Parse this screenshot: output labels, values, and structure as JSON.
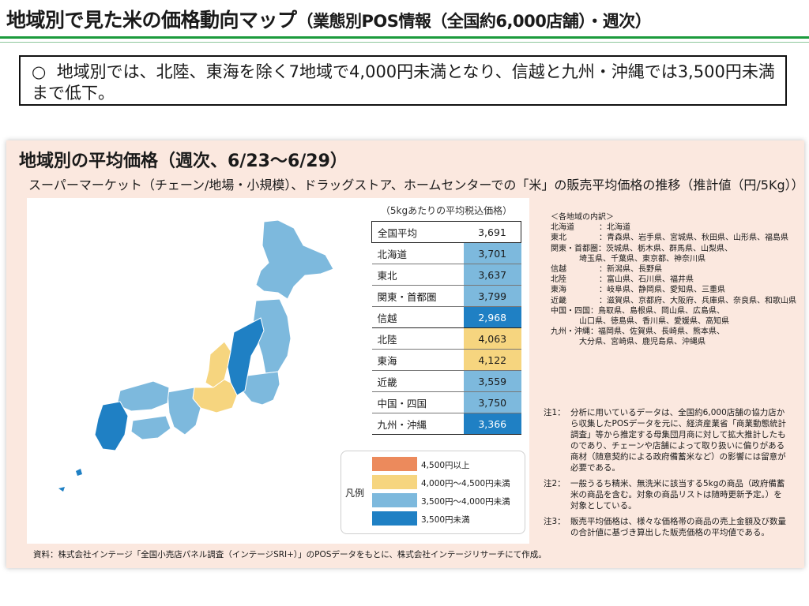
{
  "header": {
    "title": "地域別で見た米の価格動向マップ",
    "title_suffix": "（業態別POS情報（全国約6,000店舗）・週次）"
  },
  "summary": {
    "bullet": "○",
    "text": "地域別では、北陸、東海を除く7地域で4,000円未満となり、信越と九州・沖縄では3,500円未満まで低下。"
  },
  "panel": {
    "title": "地域別の平均価格（週次、6/23～6/29）",
    "subtitle": "スーパーマーケット（チェーン/地場・小規模）、ドラッグストア、ホームセンターでの「米」の販売平均価格の推移（推計値（円/5Kg））"
  },
  "colors": {
    "green_rule": "#1b9a3c",
    "panel_bg": "#fbe8df",
    "band_4500_plus": "#ec8a5c",
    "band_4000_4500": "#f6d57f",
    "band_3500_4000": "#7db9dd",
    "band_under_3500": "#1f80c4"
  },
  "table": {
    "caption": "（5kgあたりの平均税込価格）",
    "rows": [
      {
        "region": "全国平均",
        "price": "3,691",
        "band": "none"
      },
      {
        "region": "北海道",
        "price": "3,701",
        "band": "band_3500_4000"
      },
      {
        "region": "東北",
        "price": "3,637",
        "band": "band_3500_4000"
      },
      {
        "region": "関東・首都圏",
        "price": "3,799",
        "band": "band_3500_4000"
      },
      {
        "region": "信越",
        "price": "2,968",
        "band": "band_under_3500"
      },
      {
        "region": "北陸",
        "price": "4,063",
        "band": "band_4000_4500"
      },
      {
        "region": "東海",
        "price": "4,122",
        "band": "band_4000_4500"
      },
      {
        "region": "近畿",
        "price": "3,559",
        "band": "band_3500_4000"
      },
      {
        "region": "中国・四国",
        "price": "3,750",
        "band": "band_3500_4000"
      },
      {
        "region": "九州・沖縄",
        "price": "3,366",
        "band": "band_under_3500"
      }
    ]
  },
  "legend": {
    "title": "凡例",
    "items": [
      {
        "label": "4,500円以上",
        "band": "band_4500_plus"
      },
      {
        "label": "4,000円～4,500円未満",
        "band": "band_4000_4500"
      },
      {
        "label": "3,500円～4,000円未満",
        "band": "band_3500_4000"
      },
      {
        "label": "3,500円未満",
        "band": "band_under_3500"
      }
    ]
  },
  "breakdown": {
    "heading": "＜各地域の内訳＞",
    "rows": [
      {
        "region": "北海道",
        "text": "：北海道"
      },
      {
        "region": "東北",
        "text": "：青森県、岩手県、宮城県、秋田県、山形県、福島県"
      },
      {
        "region": "関東・首都圏",
        "text": "：茨城県、栃木県、群馬県、山梨県、"
      },
      {
        "region": "",
        "text": "埼玉県、千葉県、東京都、神奈川県"
      },
      {
        "region": "信越",
        "text": "：新潟県、長野県"
      },
      {
        "region": "北陸",
        "text": "：富山県、石川県、福井県"
      },
      {
        "region": "東海",
        "text": "：岐阜県、静岡県、愛知県、三重県"
      },
      {
        "region": "近畿",
        "text": "：滋賀県、京都府、大阪府、兵庫県、奈良県、和歌山県"
      },
      {
        "region": "中国・四国",
        "text": "：鳥取県、島根県、岡山県、広島県、"
      },
      {
        "region": "",
        "text": "山口県、徳島県、香川県、愛媛県、高知県"
      },
      {
        "region": "九州・沖縄",
        "text": "：福岡県、佐賀県、長崎県、熊本県、"
      },
      {
        "region": "",
        "text": "大分県、宮崎県、鹿児島県、沖縄県"
      }
    ]
  },
  "notes": [
    {
      "label": "注1：",
      "text": "分析に用いているデータは、全国約6,000店舗の協力店から収集したPOSデータを元に、経済産業省「商業動態統計調査」等から推定する母集団月商に対して拡大推計したものであり、チェーンや店舗によって取り扱いに偏りがある商材（随意契約による政府備蓄米など）の影響には留意が必要である。"
    },
    {
      "label": "注2：",
      "text": "一般うるち精米、無洗米に該当する5kgの商品（政府備蓄米の商品を含む。対象の商品リストは随時更新予定。）を対象としている。"
    },
    {
      "label": "注3：",
      "text": "販売平均価格は、様々な価格帯の商品の売上金額及び数量の合計値に基づき算出した販売価格の平均値である。"
    }
  ],
  "source": "資料：株式会社インテージ「全国小売店パネル調査（インテージSRI+）」のPOSデータをもとに、株式会社インテージリサーチにて作成。"
}
